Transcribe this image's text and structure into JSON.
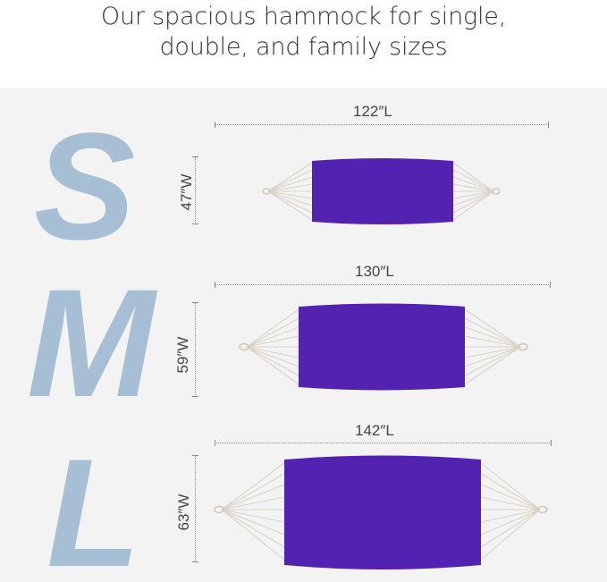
{
  "header": {
    "line1": "Our spacious hammock for single,",
    "line2": "double, and family sizes"
  },
  "colors": {
    "fabric": "#5222b0",
    "letter": "#a6bfd4",
    "rope": "#d9d3c6",
    "background": "#f3f3f3"
  },
  "sizes": [
    {
      "letter": "S",
      "length": "122″L",
      "width": "47″W"
    },
    {
      "letter": "M",
      "length": "130″L",
      "width": "59″W"
    },
    {
      "letter": "L",
      "length": "142″L",
      "width": "63″W"
    }
  ]
}
